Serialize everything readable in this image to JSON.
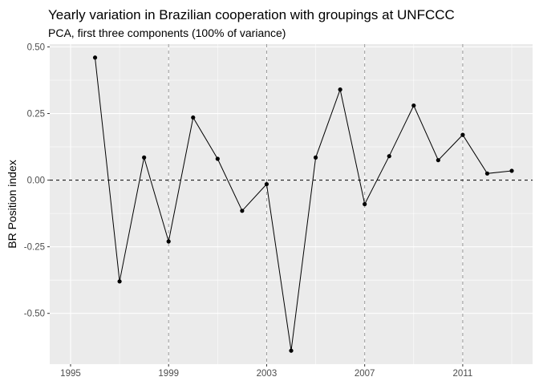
{
  "chart_data": {
    "type": "line",
    "title": "Yearly variation in Brazilian cooperation with groupings at UNFCCC",
    "subtitle": "PCA, first three components (100% of variance)",
    "xlabel": "",
    "ylabel": "BR Position index",
    "x": [
      1996,
      1997,
      1998,
      1999,
      2000,
      2001,
      2002,
      2003,
      2004,
      2005,
      2006,
      2007,
      2008,
      2009,
      2010,
      2011,
      2012,
      2013
    ],
    "y": [
      0.46,
      -0.38,
      0.085,
      -0.23,
      0.235,
      0.08,
      -0.115,
      -0.015,
      -0.64,
      0.085,
      0.34,
      -0.09,
      0.09,
      0.28,
      0.075,
      0.17,
      0.025,
      0.035
    ],
    "xlim": [
      1994.15,
      1996,
      2013.85
    ],
    "ylim": [
      -0.6905,
      0.5105
    ],
    "x_ticks": [
      1995,
      1999,
      2003,
      2007,
      2011
    ],
    "x_tick_labels": [
      "1995",
      "1999",
      "2003",
      "2007",
      "2011"
    ],
    "y_ticks": [
      0.5,
      0.25,
      0,
      -0.25,
      -0.5
    ],
    "y_tick_labels": [
      "0.50",
      "0.25",
      "0.00",
      "-0.25",
      "-0.50"
    ],
    "reference_lines": {
      "horizontal_y": 0,
      "vertical_x": [
        1999,
        2003,
        2007,
        2011
      ],
      "style": "dashed"
    },
    "grid": true,
    "legend": "none",
    "colors": {
      "panel": "#ebebeb",
      "grid": "#ffffff",
      "line": "#000000",
      "reference": "#999999"
    }
  }
}
